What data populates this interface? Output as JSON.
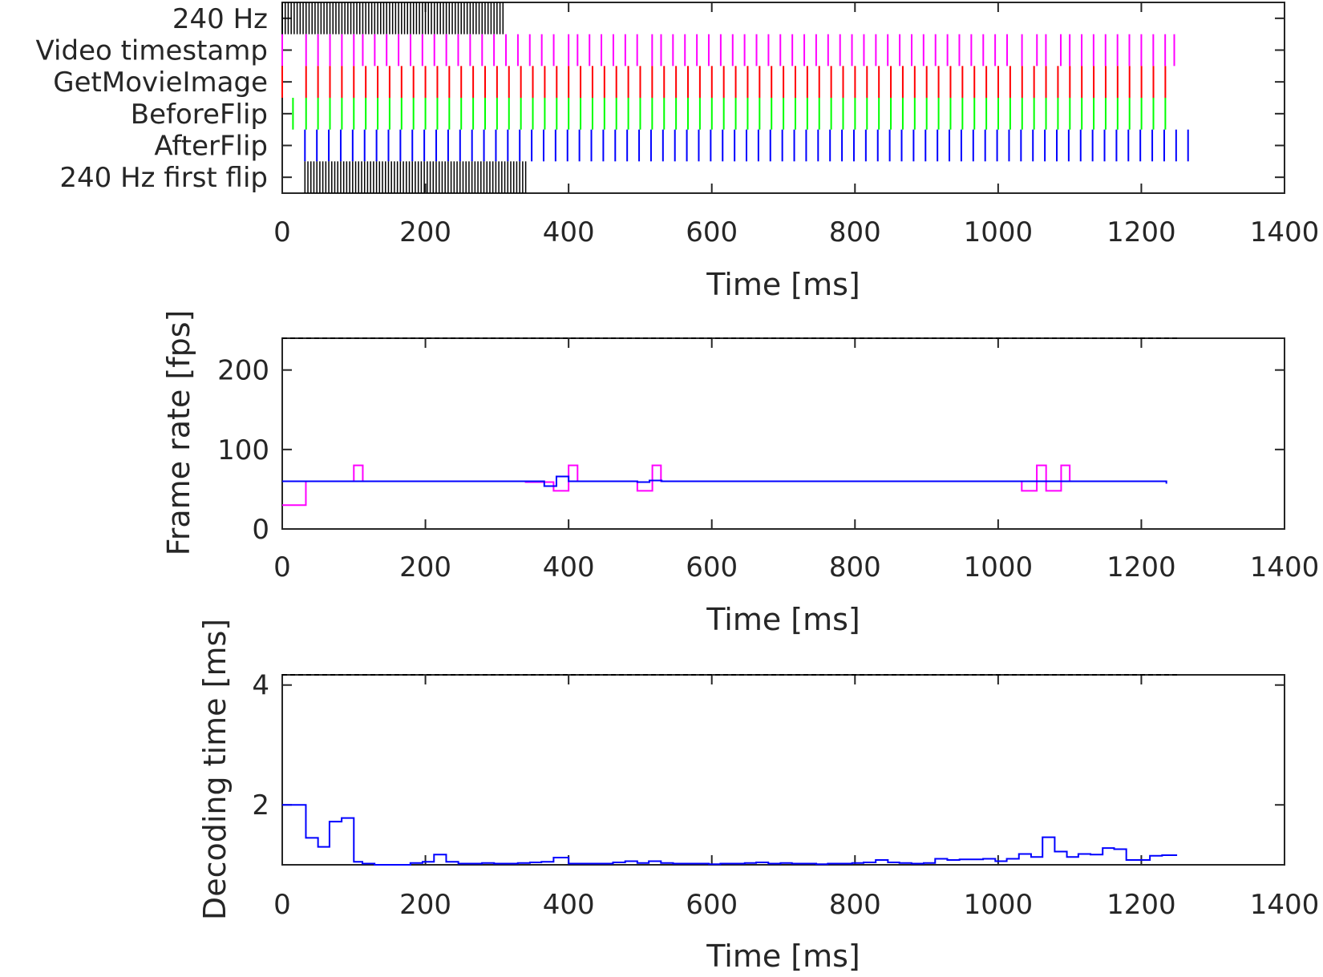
{
  "chart_data": [
    {
      "type": "raster",
      "xlabel": "Time [ms]",
      "xlim": [
        0,
        1400
      ],
      "xticks": [
        "0",
        "200",
        "400",
        "600",
        "800",
        "1000",
        "1200",
        "1400"
      ],
      "rows": [
        {
          "name": "240 Hz",
          "color": "#000000",
          "first": [],
          "start": 0,
          "period": 4.1667,
          "end": 310
        },
        {
          "name": "Video timestamp",
          "color": "#ff00ff",
          "times": [
            0,
            33.3,
            50,
            66.7,
            83.3,
            100,
            112.5,
            129.2,
            145.8,
            162.5,
            179.2,
            195.8,
            212.5,
            229.2,
            245.8,
            262.5,
            279.2,
            295.8,
            312.5,
            329.2,
            345.8,
            362.5,
            379.2,
            400,
            412.5,
            429.2,
            445.8,
            462.5,
            479.2,
            495.8,
            516.7,
            529.2,
            545.8,
            562.5,
            579.2,
            595.8,
            612.5,
            629.2,
            645.8,
            662.5,
            679.2,
            695.8,
            712.5,
            729.2,
            745.8,
            762.5,
            779.2,
            795.8,
            812.5,
            829.2,
            845.8,
            862.5,
            879.2,
            895.8,
            912.5,
            929.2,
            945.8,
            962.5,
            979.2,
            995.8,
            1012.5,
            1033.3,
            1054.2,
            1066.7,
            1087.5,
            1100,
            1116.7,
            1133.3,
            1150,
            1166.7,
            1183.3,
            1200,
            1216.7,
            1233.3,
            1246
          ]
        },
        {
          "name": "GetMovieImage",
          "color": "#ff0000",
          "first": [
            0
          ],
          "start": 33.3,
          "period": 16.67,
          "end": 1250
        },
        {
          "name": "BeforeFlip",
          "color": "#00ff00",
          "first": [
            15
          ],
          "start": 33.3,
          "period": 16.67,
          "end": 1250
        },
        {
          "name": "AfterFlip",
          "color": "#0000ff",
          "first": [],
          "start": 31.7,
          "period": 16.67,
          "end": 1268
        },
        {
          "name": "240 Hz first flip",
          "color": "#000000",
          "first": [],
          "start": 31.7,
          "period": 4.1667,
          "end": 341
        }
      ]
    },
    {
      "type": "line",
      "xlabel": "Time [ms]",
      "ylabel": "Frame rate [fps]",
      "xlim": [
        0,
        1400
      ],
      "ylim": [
        0,
        240
      ],
      "xticks": [
        "0",
        "200",
        "400",
        "600",
        "800",
        "1000",
        "1200",
        "1400"
      ],
      "yticks": [
        "0",
        "100",
        "200"
      ],
      "reference_line": {
        "value": 240,
        "style": "dashed",
        "color": "#000000",
        "x_end": 1250
      },
      "series": [
        {
          "color": "#ff00ff",
          "steps": [
            [
              0,
              30
            ],
            [
              33,
              60
            ],
            [
              100,
              80
            ],
            [
              112.5,
              60
            ],
            [
              340,
              59
            ],
            [
              379,
              48
            ],
            [
              400,
              80
            ],
            [
              412.5,
              60
            ],
            [
              496,
              48
            ],
            [
              517,
              80
            ],
            [
              529,
              60
            ],
            [
              1033,
              48
            ],
            [
              1054,
              80
            ],
            [
              1067,
              48
            ],
            [
              1088,
              80
            ],
            [
              1100,
              60
            ],
            [
              1235,
              60
            ]
          ]
        },
        {
          "color": "#0000ff",
          "steps": [
            [
              0,
              60
            ],
            [
              366,
              54
            ],
            [
              383,
              66
            ],
            [
              400,
              60
            ],
            [
              496,
              59
            ],
            [
              513,
              61
            ],
            [
              530,
              60
            ],
            [
              1235,
              57
            ]
          ]
        }
      ]
    },
    {
      "type": "line",
      "xlabel": "Time [ms]",
      "ylabel": "Decoding time [ms]",
      "xlim": [
        0,
        1400
      ],
      "ylim": [
        1,
        4.17
      ],
      "xticks": [
        "0",
        "200",
        "400",
        "600",
        "800",
        "1000",
        "1200",
        "1400"
      ],
      "yticks": [
        "2",
        "4"
      ],
      "reference_line": {
        "value": 4.17,
        "style": "dashed",
        "color": "#000000",
        "x_end": 1250
      },
      "series": [
        {
          "color": "#0000ff",
          "steps": [
            [
              0,
              2.0
            ],
            [
              33,
              1.45
            ],
            [
              50,
              1.3
            ],
            [
              66,
              1.72
            ],
            [
              83,
              1.78
            ],
            [
              100,
              1.05
            ],
            [
              112,
              1.02
            ],
            [
              129,
              1.0
            ],
            [
              146,
              1.0
            ],
            [
              162,
              1.0
            ],
            [
              179,
              1.03
            ],
            [
              196,
              1.05
            ],
            [
              212,
              1.17
            ],
            [
              229,
              1.05
            ],
            [
              246,
              1.02
            ],
            [
              262,
              1.02
            ],
            [
              279,
              1.03
            ],
            [
              296,
              1.02
            ],
            [
              312,
              1.02
            ],
            [
              329,
              1.03
            ],
            [
              346,
              1.04
            ],
            [
              362,
              1.05
            ],
            [
              379,
              1.12
            ],
            [
              400,
              1.02
            ],
            [
              412,
              1.02
            ],
            [
              429,
              1.02
            ],
            [
              446,
              1.02
            ],
            [
              462,
              1.04
            ],
            [
              479,
              1.06
            ],
            [
              496,
              1.03
            ],
            [
              512,
              1.06
            ],
            [
              529,
              1.03
            ],
            [
              546,
              1.02
            ],
            [
              562,
              1.02
            ],
            [
              579,
              1.02
            ],
            [
              596,
              1.01
            ],
            [
              612,
              1.02
            ],
            [
              629,
              1.02
            ],
            [
              646,
              1.03
            ],
            [
              662,
              1.04
            ],
            [
              679,
              1.02
            ],
            [
              696,
              1.03
            ],
            [
              712,
              1.02
            ],
            [
              729,
              1.02
            ],
            [
              746,
              1.01
            ],
            [
              762,
              1.02
            ],
            [
              779,
              1.02
            ],
            [
              796,
              1.03
            ],
            [
              812,
              1.04
            ],
            [
              829,
              1.08
            ],
            [
              846,
              1.04
            ],
            [
              862,
              1.03
            ],
            [
              879,
              1.02
            ],
            [
              896,
              1.03
            ],
            [
              912,
              1.1
            ],
            [
              929,
              1.08
            ],
            [
              946,
              1.09
            ],
            [
              962,
              1.09
            ],
            [
              979,
              1.1
            ],
            [
              996,
              1.06
            ],
            [
              1012,
              1.1
            ],
            [
              1029,
              1.18
            ],
            [
              1046,
              1.13
            ],
            [
              1062,
              1.46
            ],
            [
              1079,
              1.22
            ],
            [
              1096,
              1.13
            ],
            [
              1112,
              1.18
            ],
            [
              1129,
              1.17
            ],
            [
              1146,
              1.28
            ],
            [
              1162,
              1.26
            ],
            [
              1179,
              1.08
            ],
            [
              1196,
              1.08
            ],
            [
              1212,
              1.15
            ],
            [
              1229,
              1.16
            ],
            [
              1250,
              1.16
            ]
          ]
        }
      ]
    }
  ]
}
